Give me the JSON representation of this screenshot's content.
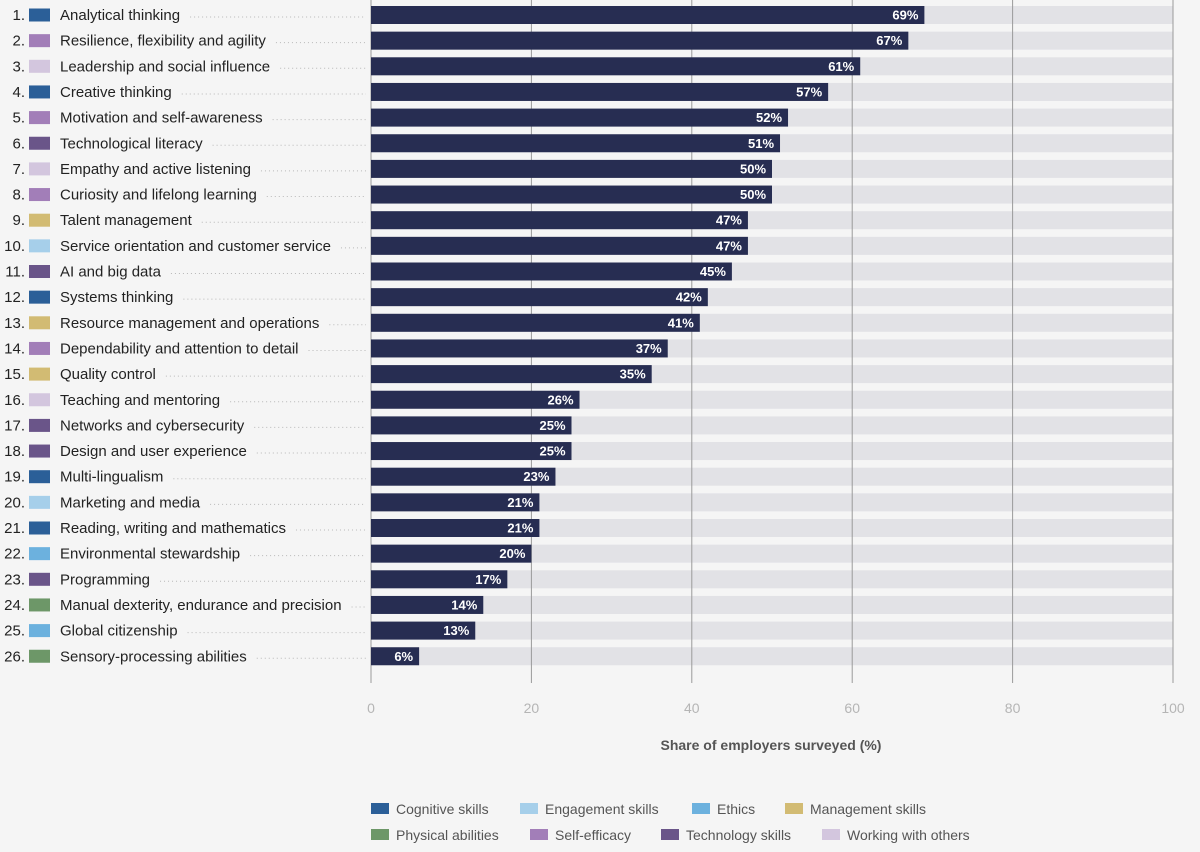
{
  "chart_data": {
    "type": "bar",
    "orientation": "horizontal",
    "xlabel": "Share of employers surveyed (%)",
    "xlim": [
      0,
      100
    ],
    "xticks": [
      0,
      20,
      40,
      60,
      80,
      100
    ],
    "grid": true,
    "value_suffix": "%",
    "categories": [
      {
        "rank": "1.",
        "label": "Analytical thinking",
        "group": "Cognitive skills",
        "value": 69
      },
      {
        "rank": "2.",
        "label": "Resilience, flexibility and agility",
        "group": "Self-efficacy",
        "value": 67
      },
      {
        "rank": "3.",
        "label": "Leadership and social influence",
        "group": "Working with others",
        "value": 61
      },
      {
        "rank": "4.",
        "label": "Creative thinking",
        "group": "Cognitive skills",
        "value": 57
      },
      {
        "rank": "5.",
        "label": "Motivation and self-awareness",
        "group": "Self-efficacy",
        "value": 52
      },
      {
        "rank": "6.",
        "label": "Technological literacy",
        "group": "Technology skills",
        "value": 51
      },
      {
        "rank": "7.",
        "label": "Empathy and active listening",
        "group": "Working with others",
        "value": 50
      },
      {
        "rank": "8.",
        "label": "Curiosity and lifelong learning",
        "group": "Self-efficacy",
        "value": 50
      },
      {
        "rank": "9.",
        "label": "Talent management",
        "group": "Management skills",
        "value": 47
      },
      {
        "rank": "10.",
        "label": "Service orientation and customer service",
        "group": "Engagement skills",
        "value": 47
      },
      {
        "rank": "11.",
        "label": "AI and big data",
        "group": "Technology skills",
        "value": 45
      },
      {
        "rank": "12.",
        "label": "Systems thinking",
        "group": "Cognitive skills",
        "value": 42
      },
      {
        "rank": "13.",
        "label": "Resource management and operations",
        "group": "Management skills",
        "value": 41
      },
      {
        "rank": "14.",
        "label": "Dependability and attention to detail",
        "group": "Self-efficacy",
        "value": 37
      },
      {
        "rank": "15.",
        "label": "Quality control",
        "group": "Management skills",
        "value": 35
      },
      {
        "rank": "16.",
        "label": "Teaching and mentoring",
        "group": "Working with others",
        "value": 26
      },
      {
        "rank": "17.",
        "label": "Networks and cybersecurity",
        "group": "Technology skills",
        "value": 25
      },
      {
        "rank": "18.",
        "label": "Design and user experience",
        "group": "Technology skills",
        "value": 25
      },
      {
        "rank": "19.",
        "label": "Multi-lingualism",
        "group": "Cognitive skills",
        "value": 23
      },
      {
        "rank": "20.",
        "label": "Marketing and media",
        "group": "Engagement skills",
        "value": 21
      },
      {
        "rank": "21.",
        "label": "Reading, writing and mathematics",
        "group": "Cognitive skills",
        "value": 21
      },
      {
        "rank": "22.",
        "label": "Environmental stewardship",
        "group": "Ethics",
        "value": 20
      },
      {
        "rank": "23.",
        "label": "Programming",
        "group": "Technology skills",
        "value": 17
      },
      {
        "rank": "24.",
        "label": "Manual dexterity, endurance and precision",
        "group": "Physical abilities",
        "value": 14
      },
      {
        "rank": "25.",
        "label": "Global citizenship",
        "group": "Ethics",
        "value": 13
      },
      {
        "rank": "26.",
        "label": "Sensory-processing abilities",
        "group": "Physical abilities",
        "value": 6
      }
    ],
    "legend": [
      {
        "label": "Cognitive skills",
        "color": "#2b5f98"
      },
      {
        "label": "Engagement skills",
        "color": "#a6cfea"
      },
      {
        "label": "Ethics",
        "color": "#6cb1de"
      },
      {
        "label": "Management skills",
        "color": "#d2bb73"
      },
      {
        "label": "Physical abilities",
        "color": "#6d9768"
      },
      {
        "label": "Self-efficacy",
        "color": "#a27eb8"
      },
      {
        "label": "Technology skills",
        "color": "#6a5589"
      },
      {
        "label": "Working with others",
        "color": "#d3c6de"
      }
    ],
    "bar_color": "#272d52",
    "track_color": "#e2e2e6"
  }
}
